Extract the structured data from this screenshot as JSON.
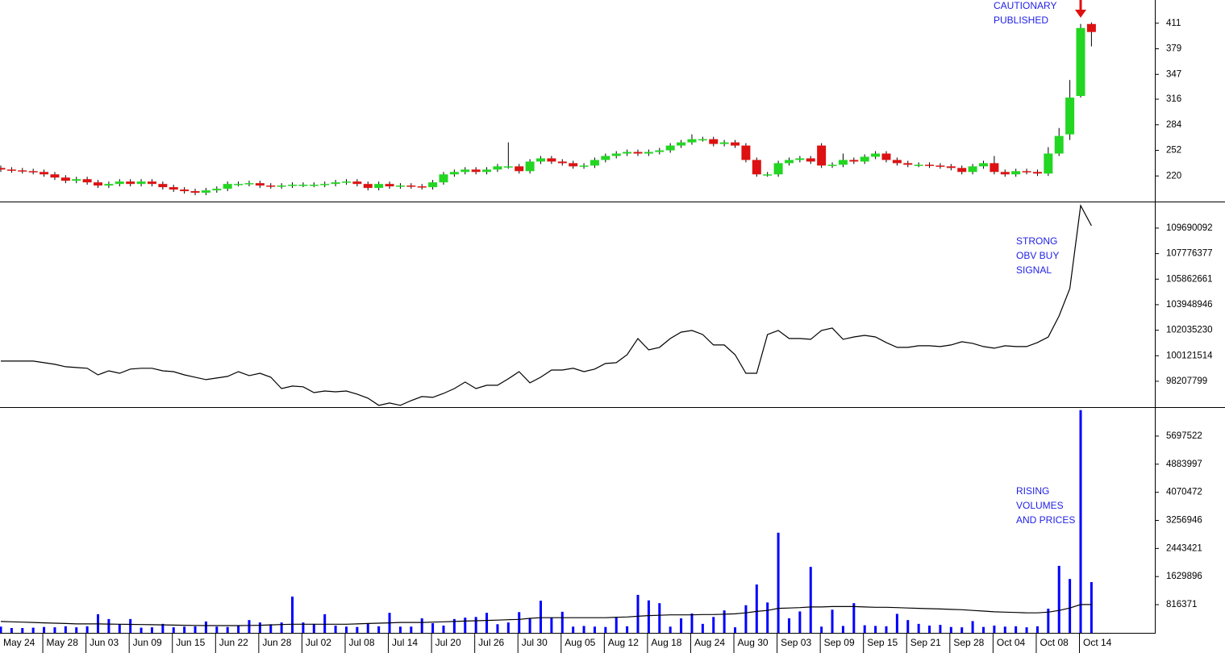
{
  "chart_data": [
    {
      "type": "candlestick",
      "annotation": [
        "CAUTIONARY",
        "PUBLISHED"
      ],
      "up_color": "#22d622",
      "down_color": "#dd1111",
      "ylim": [
        188,
        440
      ],
      "yticks": [
        220,
        252,
        284,
        316,
        347,
        379,
        411
      ],
      "series": {
        "open": [
          230,
          228,
          227,
          226,
          225,
          222,
          218,
          214,
          216,
          212,
          208,
          210,
          213,
          210,
          213,
          210,
          206,
          203,
          201,
          199,
          202,
          204,
          210,
          210,
          211,
          208,
          207,
          208,
          209,
          209,
          209,
          210,
          212,
          213,
          210,
          205,
          210,
          207,
          208,
          207,
          206,
          212,
          222,
          225,
          228,
          225,
          228,
          232,
          232,
          226,
          238,
          242,
          238,
          236,
          232,
          233,
          240,
          245,
          248,
          250,
          248,
          250,
          252,
          258,
          262,
          266,
          266,
          260,
          262,
          258,
          240,
          222,
          222,
          236,
          240,
          242,
          258,
          233,
          234,
          240,
          238,
          244,
          248,
          240,
          236,
          234,
          234,
          233,
          232,
          230,
          225,
          232,
          236,
          225,
          222,
          226,
          225,
          223,
          248,
          272,
          320,
          410
        ],
        "high": [
          233,
          231,
          230,
          229,
          228,
          225,
          221,
          219,
          219,
          215,
          213,
          216,
          216,
          216,
          216,
          213,
          209,
          206,
          204,
          205,
          207,
          213,
          213,
          214,
          214,
          211,
          211,
          212,
          212,
          212,
          213,
          215,
          216,
          216,
          213,
          213,
          213,
          211,
          211,
          210,
          215,
          225,
          228,
          231,
          231,
          231,
          235,
          262,
          235,
          241,
          245,
          245,
          241,
          239,
          236,
          243,
          248,
          251,
          253,
          253,
          253,
          255,
          261,
          265,
          272,
          269,
          269,
          265,
          265,
          261,
          243,
          225,
          239,
          243,
          245,
          245,
          261,
          237,
          248,
          243,
          247,
          251,
          251,
          243,
          239,
          237,
          237,
          236,
          235,
          233,
          235,
          239,
          245,
          228,
          229,
          229,
          228,
          256,
          280,
          340,
          410,
          412
        ],
        "low": [
          225,
          224,
          223,
          222,
          219,
          215,
          211,
          211,
          209,
          205,
          205,
          207,
          207,
          207,
          207,
          203,
          200,
          198,
          196,
          196,
          199,
          201,
          207,
          207,
          205,
          204,
          204,
          205,
          206,
          206,
          206,
          207,
          209,
          207,
          202,
          202,
          204,
          204,
          204,
          203,
          203,
          209,
          219,
          222,
          222,
          222,
          225,
          229,
          223,
          223,
          235,
          235,
          233,
          229,
          229,
          230,
          237,
          242,
          245,
          245,
          245,
          247,
          249,
          255,
          259,
          263,
          257,
          257,
          255,
          237,
          219,
          219,
          219,
          233,
          237,
          235,
          230,
          230,
          231,
          235,
          235,
          241,
          237,
          233,
          231,
          231,
          230,
          229,
          227,
          222,
          222,
          229,
          222,
          219,
          219,
          222,
          220,
          220,
          245,
          265,
          318,
          382
        ],
        "close": [
          228,
          227,
          226,
          225,
          222,
          218,
          214,
          216,
          212,
          208,
          210,
          213,
          210,
          213,
          210,
          206,
          203,
          201,
          199,
          202,
          204,
          210,
          210,
          211,
          208,
          207,
          208,
          209,
          209,
          209,
          210,
          212,
          213,
          210,
          205,
          210,
          207,
          208,
          207,
          206,
          212,
          222,
          225,
          228,
          225,
          228,
          232,
          232,
          226,
          238,
          242,
          238,
          236,
          232,
          233,
          240,
          245,
          248,
          250,
          248,
          250,
          252,
          258,
          262,
          266,
          266,
          260,
          262,
          258,
          240,
          222,
          222,
          236,
          240,
          242,
          238,
          233,
          234,
          240,
          238,
          244,
          248,
          240,
          236,
          234,
          234,
          233,
          232,
          230,
          225,
          232,
          236,
          225,
          222,
          226,
          225,
          223,
          248,
          270,
          318,
          405,
          400
        ]
      }
    },
    {
      "type": "line",
      "annotation": [
        "STRONG",
        "OBV BUY",
        "SIGNAL"
      ],
      "color": "#000000",
      "ylim": [
        96270000,
        111560000
      ],
      "yticks": [
        98207799,
        100121514,
        102035230,
        103948946,
        105862661,
        107776377,
        109690092
      ],
      "values": [
        99720000,
        99720000,
        99720000,
        99720000,
        99600000,
        99480000,
        99300000,
        99240000,
        99180000,
        98690000,
        98990000,
        98810000,
        99120000,
        99180000,
        99180000,
        98990000,
        98930000,
        98690000,
        98510000,
        98330000,
        98450000,
        98570000,
        98930000,
        98630000,
        98810000,
        98510000,
        97660000,
        97850000,
        97790000,
        97360000,
        97480000,
        97420000,
        97480000,
        97240000,
        96940000,
        96400000,
        96580000,
        96400000,
        96760000,
        97060000,
        97000000,
        97300000,
        97660000,
        98150000,
        97660000,
        97910000,
        97910000,
        98390000,
        98930000,
        98090000,
        98510000,
        99050000,
        99050000,
        99180000,
        98930000,
        99120000,
        99540000,
        99600000,
        100200000,
        101410000,
        100560000,
        100750000,
        101410000,
        101890000,
        102020000,
        101710000,
        100930000,
        100930000,
        100200000,
        98810000,
        98810000,
        101710000,
        102020000,
        101410000,
        101410000,
        101350000,
        102020000,
        102200000,
        101350000,
        101530000,
        101650000,
        101530000,
        101110000,
        100750000,
        100750000,
        100870000,
        100870000,
        100810000,
        100930000,
        101170000,
        101050000,
        100810000,
        100690000,
        100870000,
        100810000,
        100810000,
        101110000,
        101530000,
        103100000,
        105160000,
        111380000,
        109870000
      ]
    },
    {
      "type": "bar",
      "annotation": [
        "RISING",
        "VOLUMES",
        "AND PRICES"
      ],
      "ylim": [
        0,
        6490000
      ],
      "yticks": [
        816371,
        1629896,
        2443421,
        3256946,
        4070472,
        4883997,
        5697522
      ],
      "categories": [
        "May 24",
        null,
        null,
        null,
        "May 28",
        null,
        null,
        null,
        "Jun 03",
        null,
        null,
        null,
        "Jun 09",
        null,
        null,
        null,
        "Jun 15",
        null,
        null,
        null,
        "Jun 22",
        null,
        null,
        null,
        "Jun 28",
        null,
        null,
        null,
        "Jul 02",
        null,
        null,
        null,
        "Jul 08",
        null,
        null,
        null,
        "Jul 14",
        null,
        null,
        null,
        "Jul 20",
        null,
        null,
        null,
        "Jul 26",
        null,
        null,
        null,
        "Jul 30",
        null,
        null,
        null,
        "Aug 05",
        null,
        null,
        null,
        "Aug 12",
        null,
        null,
        null,
        "Aug 18",
        null,
        null,
        null,
        "Aug 24",
        null,
        null,
        null,
        "Aug 30",
        null,
        null,
        null,
        "Sep 03",
        null,
        null,
        null,
        "Sep 09",
        null,
        null,
        null,
        "Sep 15",
        null,
        null,
        null,
        "Sep 21",
        null,
        null,
        null,
        "Sep 28",
        null,
        null,
        null,
        "Oct 04",
        null,
        null,
        null,
        "Oct 08",
        null,
        null,
        null,
        "Oct 14",
        null
      ],
      "series": [
        {
          "type": "bar",
          "color": "#0000ff",
          "values": [
            180000,
            140000,
            140000,
            150000,
            170000,
            160000,
            190000,
            160000,
            190000,
            540000,
            400000,
            250000,
            400000,
            150000,
            160000,
            260000,
            160000,
            180000,
            190000,
            330000,
            180000,
            170000,
            220000,
            370000,
            300000,
            250000,
            300000,
            1050000,
            300000,
            260000,
            540000,
            210000,
            180000,
            170000,
            280000,
            190000,
            580000,
            180000,
            180000,
            420000,
            280000,
            210000,
            400000,
            440000,
            460000,
            580000,
            250000,
            300000,
            600000,
            420000,
            930000,
            440000,
            610000,
            180000,
            200000,
            180000,
            170000,
            460000,
            190000,
            1100000,
            940000,
            860000,
            180000,
            420000,
            560000,
            260000,
            460000,
            650000,
            160000,
            800000,
            1400000,
            880000,
            2900000,
            420000,
            620000,
            1910000,
            180000,
            670000,
            200000,
            860000,
            220000,
            200000,
            190000,
            550000,
            370000,
            260000,
            210000,
            230000,
            170000,
            160000,
            340000,
            170000,
            210000,
            180000,
            190000,
            160000,
            190000,
            700000,
            1940000,
            1560000,
            6450000,
            1470000
          ]
        },
        {
          "type": "line",
          "color": "#000000",
          "values": [
            330000,
            320000,
            310000,
            300000,
            290000,
            280000,
            270000,
            260000,
            260000,
            260000,
            255000,
            250000,
            245000,
            240000,
            235000,
            230000,
            225000,
            220000,
            215000,
            210000,
            210000,
            210000,
            210000,
            215000,
            220000,
            230000,
            240000,
            250000,
            250000,
            250000,
            250000,
            250000,
            250000,
            260000,
            270000,
            280000,
            290000,
            300000,
            300000,
            300000,
            310000,
            320000,
            330000,
            340000,
            350000,
            360000,
            370000,
            380000,
            390000,
            420000,
            440000,
            440000,
            440000,
            440000,
            440000,
            440000,
            440000,
            450000,
            460000,
            480000,
            500000,
            510000,
            520000,
            520000,
            520000,
            530000,
            530000,
            540000,
            550000,
            580000,
            620000,
            650000,
            710000,
            720000,
            730000,
            750000,
            750000,
            760000,
            760000,
            760000,
            750000,
            740000,
            740000,
            730000,
            720000,
            710000,
            700000,
            690000,
            680000,
            670000,
            650000,
            630000,
            610000,
            600000,
            590000,
            580000,
            580000,
            600000,
            650000,
            720000,
            820000,
            820000
          ]
        }
      ]
    }
  ]
}
